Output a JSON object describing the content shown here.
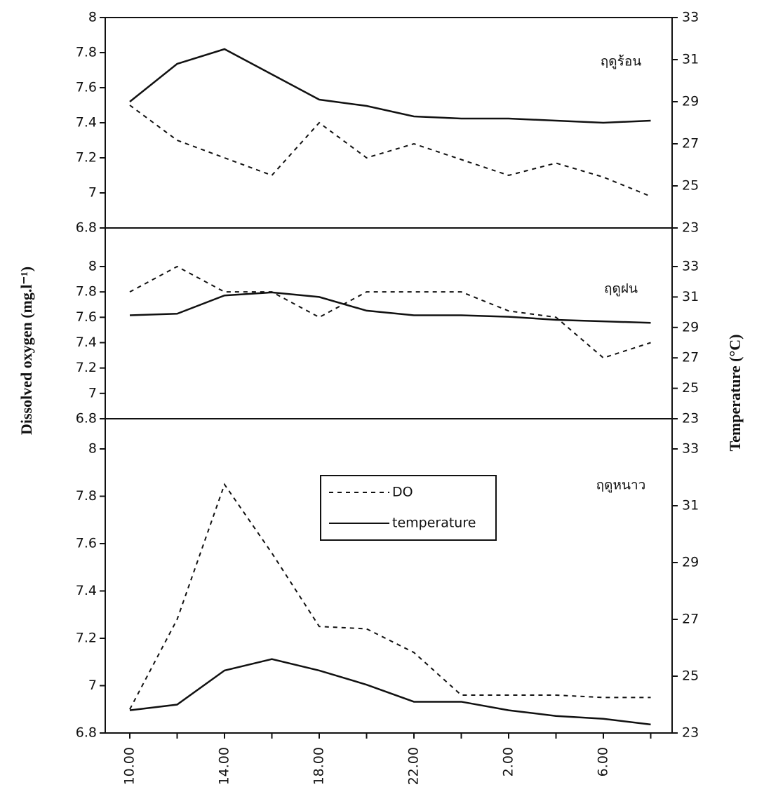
{
  "chart_data": [
    {
      "type": "line",
      "annotation": "ฤดูร้อน",
      "ylim": [
        6.8,
        8
      ],
      "yticks": [
        6.8,
        7,
        7.2,
        7.4,
        7.6,
        7.8,
        8
      ],
      "y2lim": [
        23,
        33
      ],
      "y2ticks": [
        23,
        25,
        27,
        29,
        31,
        33
      ],
      "series": [
        {
          "color": "#111111",
          "dash": true,
          "values": [
            7.5,
            7.3,
            7.2,
            7.1,
            7.4,
            7.2,
            7.28,
            7.19,
            7.1,
            7.17,
            7.09,
            6.98
          ]
        },
        {
          "color": "#111111",
          "dash": false,
          "axis": "y2",
          "values": [
            29.0,
            30.8,
            31.5,
            30.3,
            29.1,
            28.8,
            28.3,
            28.2,
            28.2,
            28.1,
            28.0,
            28.1
          ]
        }
      ]
    },
    {
      "type": "line",
      "annotation": "ฤดูฝน",
      "ylabel": "Dissolved oxygen (mg.l⁻¹)",
      "y2label": "Temperature (°C)",
      "ylim": [
        6.8,
        8
      ],
      "yticks": [
        6.8,
        7,
        7.2,
        7.4,
        7.6,
        7.8,
        8
      ],
      "y2lim": [
        23,
        33
      ],
      "y2ticks": [
        23,
        25,
        27,
        29,
        31,
        33
      ],
      "series": [
        {
          "color": "#111111",
          "dash": true,
          "values": [
            7.8,
            8.0,
            7.8,
            7.8,
            7.6,
            7.8,
            7.8,
            7.8,
            7.65,
            7.6,
            7.28,
            7.4
          ]
        },
        {
          "color": "#111111",
          "dash": false,
          "axis": "y2",
          "values": [
            29.8,
            29.9,
            31.1,
            31.3,
            31.0,
            30.1,
            29.8,
            29.8,
            29.7,
            29.5,
            29.4,
            29.3
          ]
        }
      ]
    },
    {
      "type": "line",
      "annotation": "ฤดูหนาว",
      "categories": [
        "10.00",
        null,
        "14.00",
        null,
        "18.00",
        null,
        "22.00",
        null,
        "2.00",
        null,
        "6.00",
        null
      ],
      "ylim": [
        6.8,
        8
      ],
      "yticks": [
        6.8,
        7,
        7.2,
        7.4,
        7.6,
        7.8,
        8
      ],
      "y2lim": [
        23,
        33
      ],
      "y2ticks": [
        23,
        25,
        27,
        29,
        31,
        33
      ],
      "legend": "top-center",
      "series": [
        {
          "name": "DO",
          "color": "#111111",
          "dash": true,
          "values": [
            6.9,
            7.28,
            7.85,
            7.56,
            7.25,
            7.24,
            7.14,
            6.96,
            6.96,
            6.96,
            6.95,
            6.95
          ]
        },
        {
          "name": "temperature",
          "color": "#111111",
          "dash": false,
          "axis": "y2",
          "values": [
            23.8,
            24.0,
            25.2,
            25.6,
            25.2,
            24.7,
            24.1,
            24.1,
            23.8,
            23.6,
            23.5,
            23.3
          ]
        }
      ]
    }
  ]
}
